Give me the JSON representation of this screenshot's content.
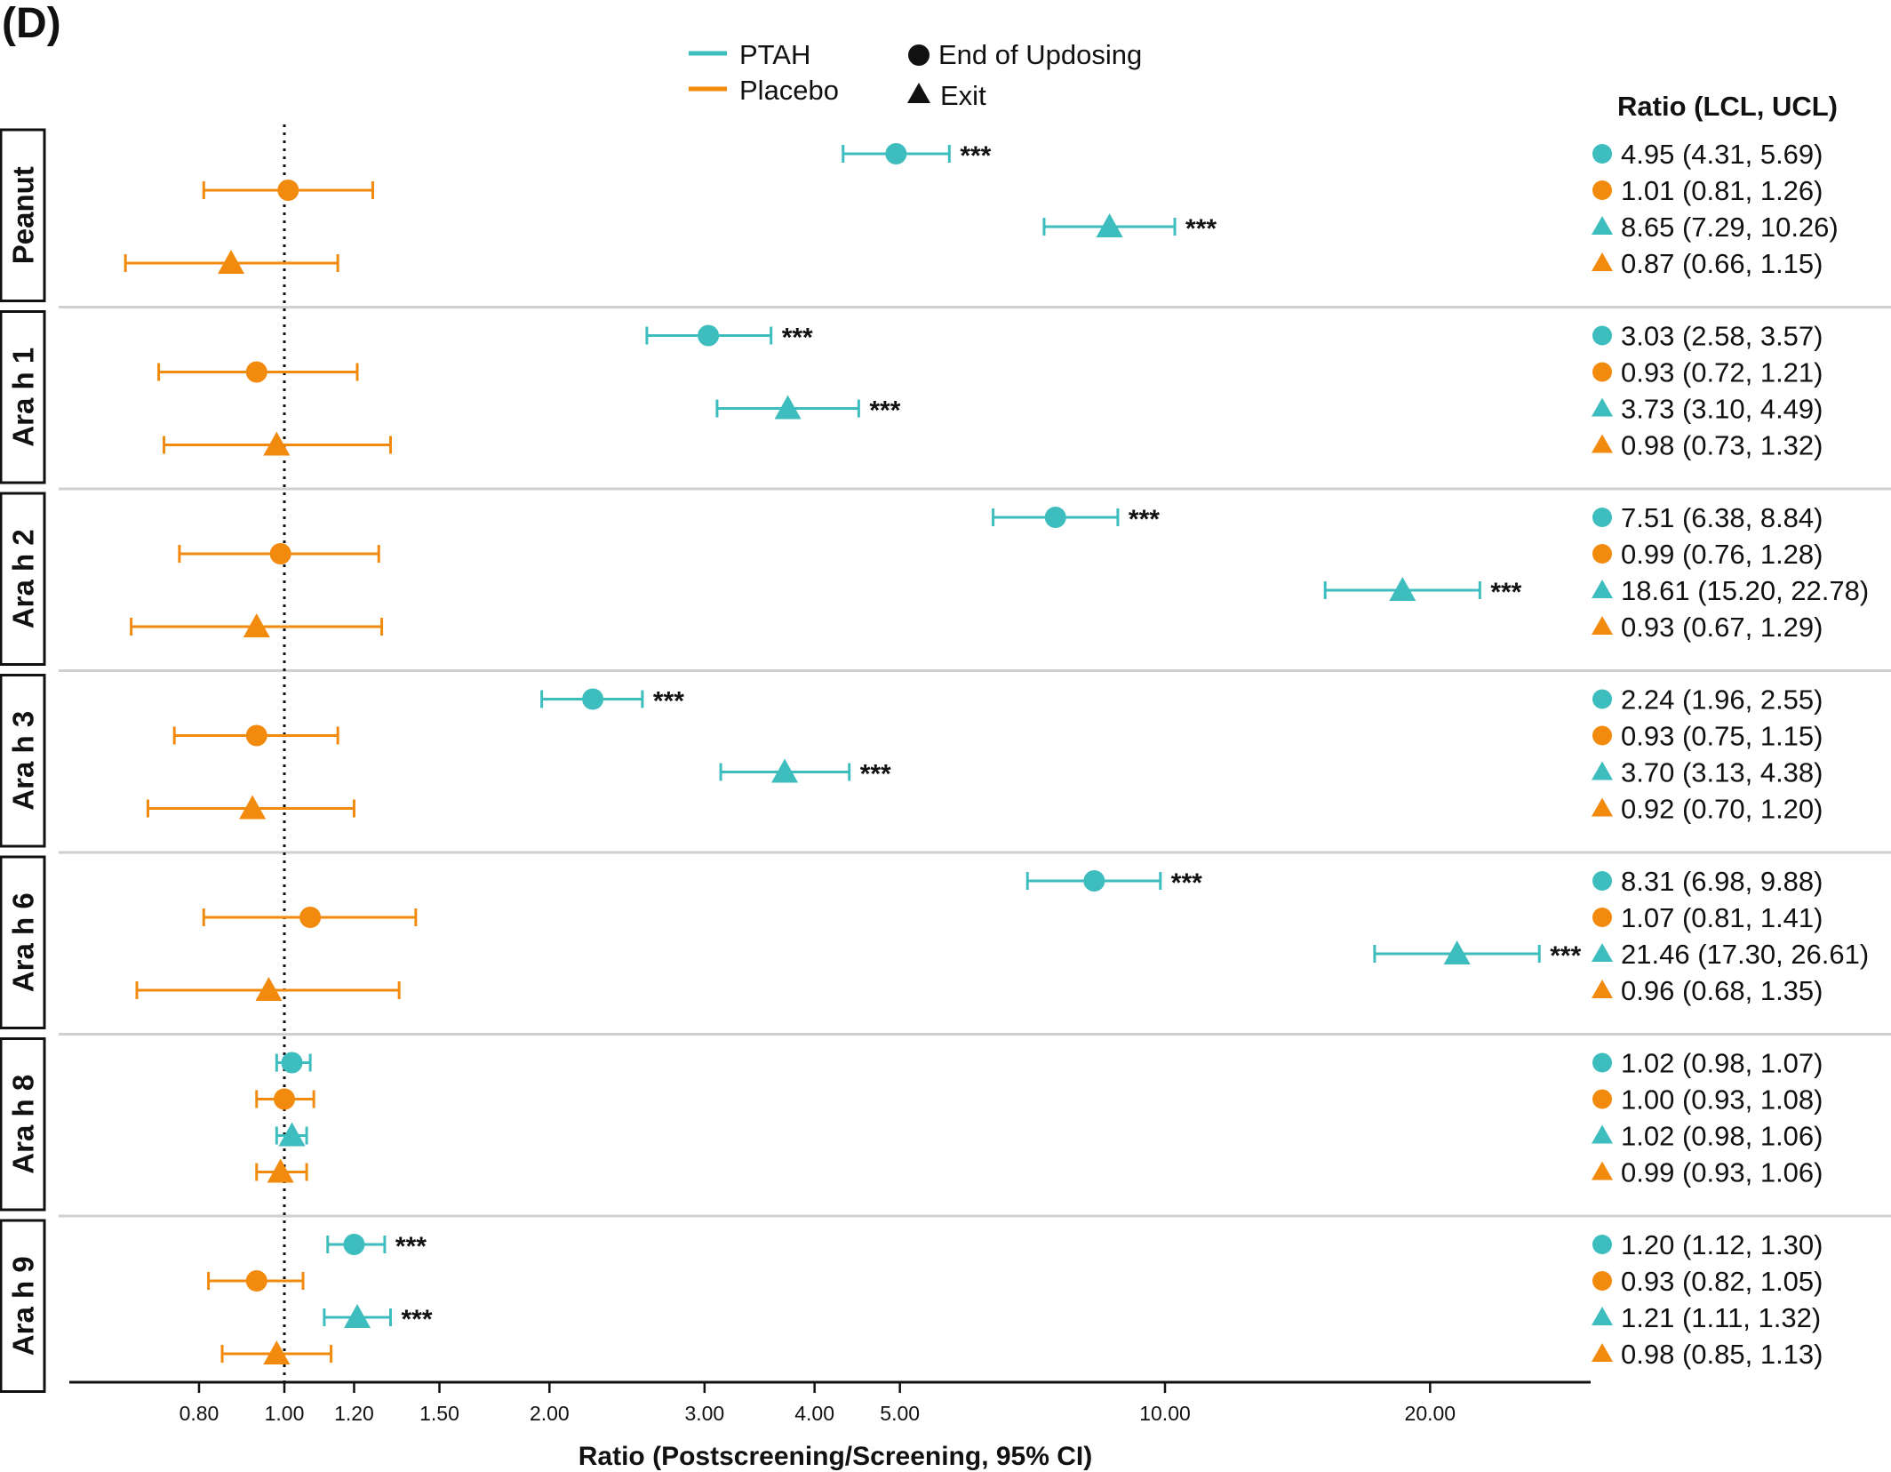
{
  "panel_label": "(D)",
  "legend": {
    "series": [
      {
        "label": "PTAH",
        "color": "#3dbdbd"
      },
      {
        "label": "Placebo",
        "color": "#f28a0e"
      }
    ],
    "markers": [
      {
        "label": "End of Updosing",
        "shape": "circle"
      },
      {
        "label": "Exit",
        "shape": "triangle"
      }
    ]
  },
  "table_header": "Ratio (LCL, UCL)",
  "chart_data": {
    "type": "scatter",
    "subtype": "forest",
    "xlabel": "Ratio (Postscreening/Screening, 95% CI)",
    "x_scale": "log",
    "xlim": [
      0.62,
      30
    ],
    "x_ticks": [
      0.8,
      1.0,
      1.2,
      1.5,
      2.0,
      3.0,
      4.0,
      5.0,
      10.0,
      20.0
    ],
    "x_tick_labels": [
      "0.80",
      "1.00",
      "1.20",
      "1.50",
      "2.00",
      "3.00",
      "4.00",
      "5.00",
      "10.00",
      "20.00"
    ],
    "reference_line": 1.0,
    "significance_marker": "***",
    "groups": [
      {
        "name": "Peanut",
        "rows": [
          {
            "series": "PTAH",
            "timepoint": "End of Updosing",
            "ratio": 4.95,
            "lcl": 4.31,
            "ucl": 5.69,
            "label": "4.95 (4.31, 5.69)",
            "sig": true
          },
          {
            "series": "Placebo",
            "timepoint": "End of Updosing",
            "ratio": 1.01,
            "lcl": 0.81,
            "ucl": 1.26,
            "label": "1.01 (0.81, 1.26)",
            "sig": false
          },
          {
            "series": "PTAH",
            "timepoint": "Exit",
            "ratio": 8.65,
            "lcl": 7.29,
            "ucl": 10.26,
            "label": "8.65 (7.29, 10.26)",
            "sig": true
          },
          {
            "series": "Placebo",
            "timepoint": "Exit",
            "ratio": 0.87,
            "lcl": 0.66,
            "ucl": 1.15,
            "label": "0.87 (0.66, 1.15)",
            "sig": false
          }
        ]
      },
      {
        "name": "Ara h 1",
        "rows": [
          {
            "series": "PTAH",
            "timepoint": "End of Updosing",
            "ratio": 3.03,
            "lcl": 2.58,
            "ucl": 3.57,
            "label": "3.03 (2.58, 3.57)",
            "sig": true
          },
          {
            "series": "Placebo",
            "timepoint": "End of Updosing",
            "ratio": 0.93,
            "lcl": 0.72,
            "ucl": 1.21,
            "label": "0.93 (0.72, 1.21)",
            "sig": false
          },
          {
            "series": "PTAH",
            "timepoint": "Exit",
            "ratio": 3.73,
            "lcl": 3.1,
            "ucl": 4.49,
            "label": "3.73 (3.10, 4.49)",
            "sig": true
          },
          {
            "series": "Placebo",
            "timepoint": "Exit",
            "ratio": 0.98,
            "lcl": 0.73,
            "ucl": 1.32,
            "label": "0.98 (0.73, 1.32)",
            "sig": false
          }
        ]
      },
      {
        "name": "Ara h 2",
        "rows": [
          {
            "series": "PTAH",
            "timepoint": "End of Updosing",
            "ratio": 7.51,
            "lcl": 6.38,
            "ucl": 8.84,
            "label": "7.51 (6.38, 8.84)",
            "sig": true
          },
          {
            "series": "Placebo",
            "timepoint": "End of Updosing",
            "ratio": 0.99,
            "lcl": 0.76,
            "ucl": 1.28,
            "label": "0.99 (0.76, 1.28)",
            "sig": false
          },
          {
            "series": "PTAH",
            "timepoint": "Exit",
            "ratio": 18.61,
            "lcl": 15.2,
            "ucl": 22.78,
            "label": "18.61 (15.20, 22.78)",
            "sig": true
          },
          {
            "series": "Placebo",
            "timepoint": "Exit",
            "ratio": 0.93,
            "lcl": 0.67,
            "ucl": 1.29,
            "label": "0.93 (0.67, 1.29)",
            "sig": false
          }
        ]
      },
      {
        "name": "Ara h 3",
        "rows": [
          {
            "series": "PTAH",
            "timepoint": "End of Updosing",
            "ratio": 2.24,
            "lcl": 1.96,
            "ucl": 2.55,
            "label": "2.24 (1.96, 2.55)",
            "sig": true
          },
          {
            "series": "Placebo",
            "timepoint": "End of Updosing",
            "ratio": 0.93,
            "lcl": 0.75,
            "ucl": 1.15,
            "label": "0.93 (0.75, 1.15)",
            "sig": false
          },
          {
            "series": "PTAH",
            "timepoint": "Exit",
            "ratio": 3.7,
            "lcl": 3.13,
            "ucl": 4.38,
            "label": "3.70 (3.13, 4.38)",
            "sig": true
          },
          {
            "series": "Placebo",
            "timepoint": "Exit",
            "ratio": 0.92,
            "lcl": 0.7,
            "ucl": 1.2,
            "label": "0.92 (0.70, 1.20)",
            "sig": false
          }
        ]
      },
      {
        "name": "Ara h 6",
        "rows": [
          {
            "series": "PTAH",
            "timepoint": "End of Updosing",
            "ratio": 8.31,
            "lcl": 6.98,
            "ucl": 9.88,
            "label": "8.31 (6.98, 9.88)",
            "sig": true
          },
          {
            "series": "Placebo",
            "timepoint": "End of Updosing",
            "ratio": 1.07,
            "lcl": 0.81,
            "ucl": 1.41,
            "label": "1.07 (0.81, 1.41)",
            "sig": false
          },
          {
            "series": "PTAH",
            "timepoint": "Exit",
            "ratio": 21.46,
            "lcl": 17.3,
            "ucl": 26.61,
            "label": "21.46 (17.30, 26.61)",
            "sig": true
          },
          {
            "series": "Placebo",
            "timepoint": "Exit",
            "ratio": 0.96,
            "lcl": 0.68,
            "ucl": 1.35,
            "label": "0.96 (0.68, 1.35)",
            "sig": false
          }
        ]
      },
      {
        "name": "Ara h 8",
        "rows": [
          {
            "series": "PTAH",
            "timepoint": "End of Updosing",
            "ratio": 1.02,
            "lcl": 0.98,
            "ucl": 1.07,
            "label": "1.02 (0.98, 1.07)",
            "sig": false
          },
          {
            "series": "Placebo",
            "timepoint": "End of Updosing",
            "ratio": 1.0,
            "lcl": 0.93,
            "ucl": 1.08,
            "label": "1.00 (0.93, 1.08)",
            "sig": false
          },
          {
            "series": "PTAH",
            "timepoint": "Exit",
            "ratio": 1.02,
            "lcl": 0.98,
            "ucl": 1.06,
            "label": "1.02 (0.98, 1.06)",
            "sig": false
          },
          {
            "series": "Placebo",
            "timepoint": "Exit",
            "ratio": 0.99,
            "lcl": 0.93,
            "ucl": 1.06,
            "label": "0.99 (0.93, 1.06)",
            "sig": false
          }
        ]
      },
      {
        "name": "Ara h 9",
        "rows": [
          {
            "series": "PTAH",
            "timepoint": "End of Updosing",
            "ratio": 1.2,
            "lcl": 1.12,
            "ucl": 1.3,
            "label": "1.20 (1.12, 1.30)",
            "sig": true
          },
          {
            "series": "Placebo",
            "timepoint": "End of Updosing",
            "ratio": 0.93,
            "lcl": 0.82,
            "ucl": 1.05,
            "label": "0.93 (0.82, 1.05)",
            "sig": false
          },
          {
            "series": "PTAH",
            "timepoint": "Exit",
            "ratio": 1.21,
            "lcl": 1.11,
            "ucl": 1.32,
            "label": "1.21 (1.11, 1.32)",
            "sig": true
          },
          {
            "series": "Placebo",
            "timepoint": "Exit",
            "ratio": 0.98,
            "lcl": 0.85,
            "ucl": 1.13,
            "label": "0.98 (0.85, 1.13)",
            "sig": false
          }
        ]
      }
    ]
  }
}
